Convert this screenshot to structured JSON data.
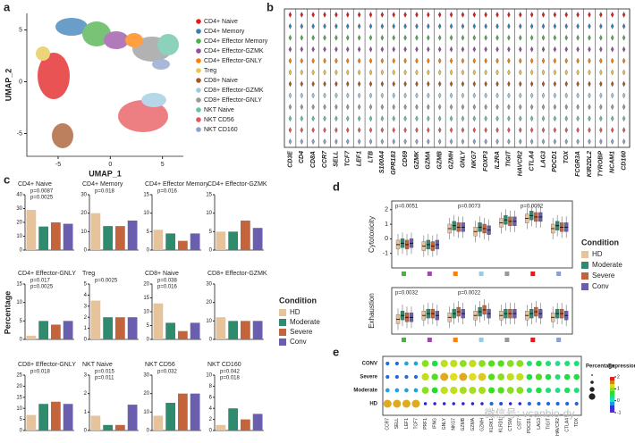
{
  "panel_labels": [
    "a",
    "b",
    "c",
    "d",
    "e"
  ],
  "umap": {
    "type": "scatter",
    "xlabel": "UMAP_1",
    "ylabel": "UMAP_2",
    "xlim": [
      -8,
      7
    ],
    "ylim": [
      -7.2,
      6.6
    ],
    "xticks": [
      -5,
      0,
      5
    ],
    "yticks": [
      -5,
      0,
      5
    ],
    "legend": [
      {
        "name": "CD4+ Naive",
        "color": "#e41a1c"
      },
      {
        "name": "CD4+ Memory",
        "color": "#377eb8"
      },
      {
        "name": "CD4+ Effector Memory",
        "color": "#4daf4a"
      },
      {
        "name": "CD4+ Effector-GZMK",
        "color": "#984ea3"
      },
      {
        "name": "CD4+ Effector-GNLY",
        "color": "#ff7f00"
      },
      {
        "name": "Treg",
        "color": "#e6c84c"
      },
      {
        "name": "CD8+ Naive",
        "color": "#a65628"
      },
      {
        "name": "CD8+ Effector-GZMK",
        "color": "#9ecae1"
      },
      {
        "name": "CD8+ Effector-GNLY",
        "color": "#999999"
      },
      {
        "name": "NKT Naive",
        "color": "#66c2a5"
      },
      {
        "name": "NKT CD56",
        "color": "#e7545a"
      },
      {
        "name": "NKT CD160",
        "color": "#8da0cb"
      }
    ]
  },
  "violin": {
    "genes": [
      "CD3E",
      "CD4",
      "CD8A",
      "CCR7",
      "SELL",
      "TCF7",
      "LEF1",
      "LTB",
      "S100A4",
      "GPR183",
      "CD69",
      "GZMK",
      "GZMA",
      "GZMB",
      "GZMH",
      "GNLY",
      "NKG7",
      "FOXP3",
      "IL2RA",
      "TIGIT",
      "HAVCR2",
      "CTLA4",
      "LAG3",
      "PDCD1",
      "TOX",
      "FCGR3A",
      "KIR2DL2",
      "TYROBP",
      "NCAM1",
      "CD160"
    ]
  },
  "bars": {
    "ylabel": "Percentage",
    "legend_title": "Condition",
    "conditions": [
      "HD",
      "Moderate",
      "Severe",
      "Conv"
    ],
    "colors": [
      "#e6c39a",
      "#2e8b6e",
      "#c4643c",
      "#6a5fae"
    ],
    "charts": [
      {
        "type": "bar",
        "title": "CD4+ Naive",
        "values": [
          29,
          17,
          20,
          19
        ],
        "ylim": [
          0,
          40
        ],
        "yticks": [
          0,
          10,
          20,
          30,
          40
        ],
        "annotations": [
          "p=0.0087",
          "p=0.0025"
        ]
      },
      {
        "type": "bar",
        "title": "CD4+ Memory",
        "values": [
          20,
          13,
          13,
          16
        ],
        "ylim": [
          0,
          30
        ],
        "yticks": [
          0,
          10,
          20,
          30
        ],
        "annotations": [
          "p=0.018"
        ]
      },
      {
        "type": "bar",
        "title": "CD4+ Effector Memory",
        "values": [
          5.5,
          4.5,
          2.5,
          4.5
        ],
        "ylim": [
          0,
          15
        ],
        "yticks": [
          0,
          5,
          10,
          15
        ],
        "annotations": [
          "p=0.016"
        ]
      },
      {
        "type": "bar",
        "title": "CD4+ Effector-GZMK",
        "values": [
          5,
          5,
          8,
          6
        ],
        "ylim": [
          0,
          15
        ],
        "yticks": [
          0,
          5,
          10,
          15
        ],
        "annotations": []
      },
      {
        "type": "bar",
        "title": "CD4+ Effector-GNLY",
        "values": [
          1,
          5,
          4,
          5
        ],
        "ylim": [
          0,
          15
        ],
        "yticks": [
          0,
          5,
          10,
          15
        ],
        "annotations": [
          "p=0.017",
          "p=0.0025"
        ]
      },
      {
        "type": "bar",
        "title": "Treg",
        "values": [
          3.5,
          2,
          2,
          2
        ],
        "ylim": [
          0,
          5
        ],
        "yticks": [
          0,
          1,
          2,
          3,
          4,
          5
        ],
        "annotations": [
          "p=0.0025"
        ]
      },
      {
        "type": "bar",
        "title": "CD8+ Naive",
        "values": [
          13,
          6,
          3,
          6
        ],
        "ylim": [
          0,
          20
        ],
        "yticks": [
          0,
          5,
          10,
          15,
          20
        ],
        "annotations": [
          "p=0.038",
          "p=0.016"
        ]
      },
      {
        "type": "bar",
        "title": "CD8+ Effector-GZMK",
        "values": [
          12,
          10,
          10,
          10
        ],
        "ylim": [
          0,
          30
        ],
        "yticks": [
          0,
          10,
          20,
          30
        ],
        "annotations": []
      },
      {
        "type": "bar",
        "title": "CD8+ Effector-GNLY",
        "values": [
          7,
          12,
          13,
          12
        ],
        "ylim": [
          0,
          25
        ],
        "yticks": [
          0,
          5,
          10,
          15,
          20,
          25
        ],
        "annotations": [
          "p=0.018"
        ]
      },
      {
        "type": "bar",
        "title": "NKT Naive",
        "values": [
          0.8,
          0.3,
          0.3,
          1.4
        ],
        "ylim": [
          0,
          3
        ],
        "yticks": [
          0,
          1,
          2,
          3
        ],
        "annotations": [
          "p=0.015",
          "p=0.011"
        ]
      },
      {
        "type": "bar",
        "title": "NKT CD56",
        "values": [
          8,
          15,
          20,
          20
        ],
        "ylim": [
          0,
          30
        ],
        "yticks": [
          0,
          10,
          20,
          30
        ],
        "annotations": [
          "p=0.032"
        ]
      },
      {
        "type": "bar",
        "title": "NKT CD160",
        "values": [
          1,
          4,
          2,
          3
        ],
        "ylim": [
          0,
          10
        ],
        "yticks": [
          0,
          2,
          4,
          6,
          8,
          10
        ],
        "annotations": [
          "p=0.042",
          "p=0.018"
        ]
      }
    ]
  },
  "boxes": {
    "legend_title": "Condition",
    "group_colors": [
      "#4daf4a",
      "#984ea3",
      "#ff7f00",
      "#9ecae1",
      "#999999",
      "#e41a1c",
      "#8da0cb"
    ],
    "rows": [
      {
        "type": "box",
        "ylabel": "Cytotoxicity",
        "ylim": [
          -2,
          2.6
        ],
        "yticks": [
          -1,
          0,
          1,
          2
        ],
        "medians": [
          [
            -0.4,
            -0.3,
            -0.4,
            -0.3
          ],
          [
            -0.5,
            -0.4,
            -0.5,
            -0.4
          ],
          [
            0.7,
            0.9,
            0.8,
            0.8
          ],
          [
            0.5,
            0.8,
            0.7,
            0.6
          ],
          [
            1.1,
            1.3,
            1.2,
            1.2
          ],
          [
            1.4,
            1.6,
            1.5,
            1.5
          ],
          [
            0.7,
            0.9,
            0.8,
            0.8
          ]
        ],
        "annotations": [
          "p=0.0051",
          "p=0.0073",
          "p=0.0092"
        ]
      },
      {
        "type": "box",
        "ylabel": "Exhaustion",
        "ylim": [
          -1,
          1.5
        ],
        "yticks": [],
        "medians": [
          [
            -0.2,
            0,
            -0.1,
            -0.1
          ],
          [
            0,
            0.1,
            0.1,
            0
          ],
          [
            -0.1,
            0.1,
            0.2,
            0.1
          ],
          [
            0,
            0.2,
            0.3,
            0.1
          ],
          [
            0,
            0.1,
            0.1,
            0.1
          ],
          [
            0,
            0.1,
            0.2,
            0.1
          ],
          [
            -0.1,
            0.1,
            0.1,
            0
          ]
        ],
        "annotations": [
          "p=0.0032",
          "p=0.0022"
        ]
      }
    ]
  },
  "dotplot": {
    "type": "dot",
    "rows": [
      "CONV",
      "Severe",
      "Moderate",
      "HD"
    ],
    "genes": [
      "CCR7",
      "SELL",
      "LEF1",
      "TCF7",
      "PRF1",
      "IFNG",
      "GNLY",
      "NKG7",
      "GZMB",
      "GZMA",
      "GZMH",
      "KLRK1",
      "KLRD1",
      "CTSW",
      "CST7",
      "PDCD1",
      "LAG3",
      "TIGIT",
      "HAVCR2",
      "CTLA4",
      "TOX"
    ],
    "values": [
      [
        -0.5,
        -0.5,
        -0.3,
        -0.3,
        1,
        0.5,
        1.2,
        1.2,
        1,
        1.2,
        1,
        0.8,
        0.8,
        1,
        1,
        0.3,
        0.5,
        0.3,
        0.2,
        0.3,
        0.3
      ],
      [
        -0.5,
        -0.5,
        -0.5,
        -0.5,
        1.2,
        0.8,
        1.5,
        1.3,
        1.5,
        1.3,
        1.4,
        0.8,
        1,
        1.2,
        1.2,
        0.5,
        0.8,
        0.5,
        0.3,
        0.5,
        0.5
      ],
      [
        -0.3,
        -0.3,
        -0.3,
        -0.3,
        1,
        0.6,
        1.2,
        1.2,
        1.1,
        1.1,
        1.1,
        0.7,
        0.8,
        1,
        1,
        0.3,
        0.5,
        0.3,
        0.2,
        0.4,
        0.3
      ],
      [
        1.5,
        1.5,
        1.5,
        1.5,
        -0.8,
        -0.8,
        -0.8,
        -0.8,
        -0.8,
        -0.8,
        -0.8,
        -0.5,
        -0.6,
        -0.8,
        -0.8,
        -0.5,
        -0.5,
        -0.5,
        -0.5,
        -0.5,
        -0.5
      ]
    ],
    "size_title": "Percentage",
    "color_title": "Expression",
    "clim": [
      -1,
      2
    ],
    "cticks": [
      -1,
      0,
      1,
      2
    ]
  },
  "watermark": "微信号: vcanbio-dy"
}
